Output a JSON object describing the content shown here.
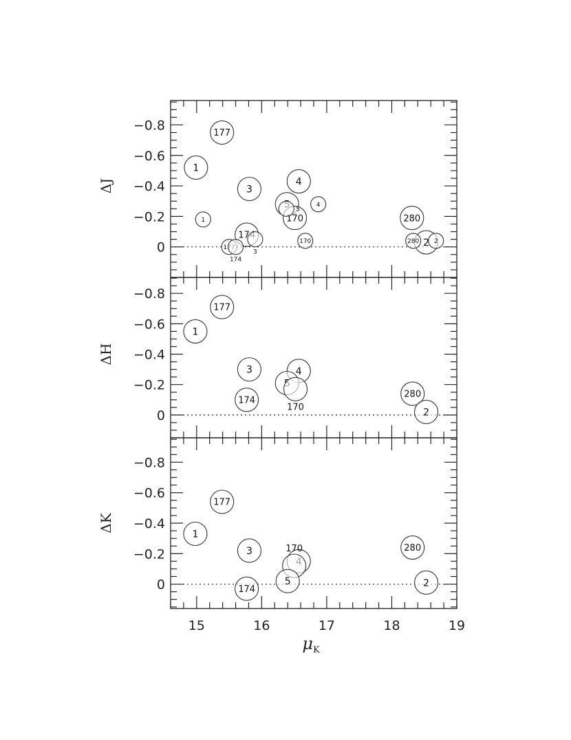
{
  "chart_data": {
    "type": "scatter",
    "xlabel": "μK",
    "x_range": [
      14.6,
      19
    ],
    "x_ticks": [
      "15",
      "16",
      "17",
      "18",
      "19"
    ],
    "grid": false,
    "zero_line": "dotted",
    "marker": "open circle with label",
    "panels": [
      {
        "ylabel": "ΔJ",
        "y_range": [
          0.2,
          -0.96
        ],
        "y_ticks": [
          "−0.8",
          "−0.6",
          "−0.4",
          "−0.2",
          "0"
        ],
        "points": [
          {
            "label": "177",
            "x": 15.39,
            "y": -0.75,
            "size": "large"
          },
          {
            "label": "1",
            "x": 14.99,
            "y": -0.52,
            "size": "large"
          },
          {
            "label": "3",
            "x": 15.81,
            "y": -0.38,
            "size": "large"
          },
          {
            "label": "4",
            "x": 16.57,
            "y": -0.43,
            "size": "large"
          },
          {
            "label": "5",
            "x": 16.39,
            "y": -0.28,
            "size": "large"
          },
          {
            "label": "170",
            "x": 16.51,
            "y": -0.19,
            "size": "large"
          },
          {
            "label": "174",
            "x": 15.77,
            "y": -0.08,
            "size": "large"
          },
          {
            "label": "280",
            "x": 18.31,
            "y": -0.19,
            "size": "large"
          },
          {
            "label": "2",
            "x": 18.53,
            "y": -0.03,
            "size": "large"
          },
          {
            "label": "1",
            "x": 15.1,
            "y": -0.18,
            "size": "small"
          },
          {
            "label": "5",
            "x": 16.38,
            "y": -0.25,
            "size": "small"
          },
          {
            "label": "4",
            "x": 16.87,
            "y": -0.28,
            "size": "small"
          },
          {
            "label": "3",
            "x": 15.9,
            "y": -0.05,
            "size": "small"
          },
          {
            "label": "170",
            "x": 16.67,
            "y": -0.04,
            "size": "small"
          },
          {
            "label": "177",
            "x": 15.5,
            "y": 0.0,
            "size": "small"
          },
          {
            "label": "174",
            "x": 15.6,
            "y": 0.0,
            "size": "small"
          },
          {
            "label": "280",
            "x": 18.33,
            "y": -0.04,
            "size": "small"
          },
          {
            "label": "2",
            "x": 18.68,
            "y": -0.04,
            "size": "small"
          }
        ]
      },
      {
        "ylabel": "ΔH",
        "y_range": [
          0.15,
          -0.905
        ],
        "y_ticks": [
          "−0.8",
          "−0.6",
          "−0.4",
          "−0.2",
          "0"
        ],
        "points": [
          {
            "label": "177",
            "x": 15.39,
            "y": -0.71,
            "size": "large"
          },
          {
            "label": "1",
            "x": 14.98,
            "y": -0.55,
            "size": "large"
          },
          {
            "label": "3",
            "x": 15.81,
            "y": -0.3,
            "size": "large"
          },
          {
            "label": "4",
            "x": 16.57,
            "y": -0.29,
            "size": "large"
          },
          {
            "label": "5",
            "x": 16.39,
            "y": -0.21,
            "size": "large"
          },
          {
            "label": "170",
            "x": 16.52,
            "y": -0.17,
            "size": "large"
          },
          {
            "label": "174",
            "x": 15.77,
            "y": -0.1,
            "size": "large"
          },
          {
            "label": "280",
            "x": 18.32,
            "y": -0.14,
            "size": "large"
          },
          {
            "label": "2",
            "x": 18.53,
            "y": -0.02,
            "size": "large"
          }
        ]
      },
      {
        "ylabel": "ΔK",
        "y_range": [
          0.16,
          -0.96
        ],
        "y_ticks": [
          "−0.8",
          "−0.6",
          "−0.4",
          "−0.2",
          "0"
        ],
        "points": [
          {
            "label": "177",
            "x": 15.39,
            "y": -0.54,
            "size": "large"
          },
          {
            "label": "1",
            "x": 14.98,
            "y": -0.33,
            "size": "large"
          },
          {
            "label": "3",
            "x": 15.81,
            "y": -0.22,
            "size": "large"
          },
          {
            "label": "4",
            "x": 16.57,
            "y": -0.15,
            "size": "large"
          },
          {
            "label": "170",
            "x": 16.5,
            "y": -0.12,
            "size": "large"
          },
          {
            "label": "5",
            "x": 16.4,
            "y": -0.02,
            "size": "large"
          },
          {
            "label": "174",
            "x": 15.77,
            "y": 0.03,
            "size": "large"
          },
          {
            "label": "280",
            "x": 18.32,
            "y": -0.24,
            "size": "large"
          },
          {
            "label": "2",
            "x": 18.53,
            "y": -0.01,
            "size": "large"
          }
        ]
      }
    ]
  }
}
